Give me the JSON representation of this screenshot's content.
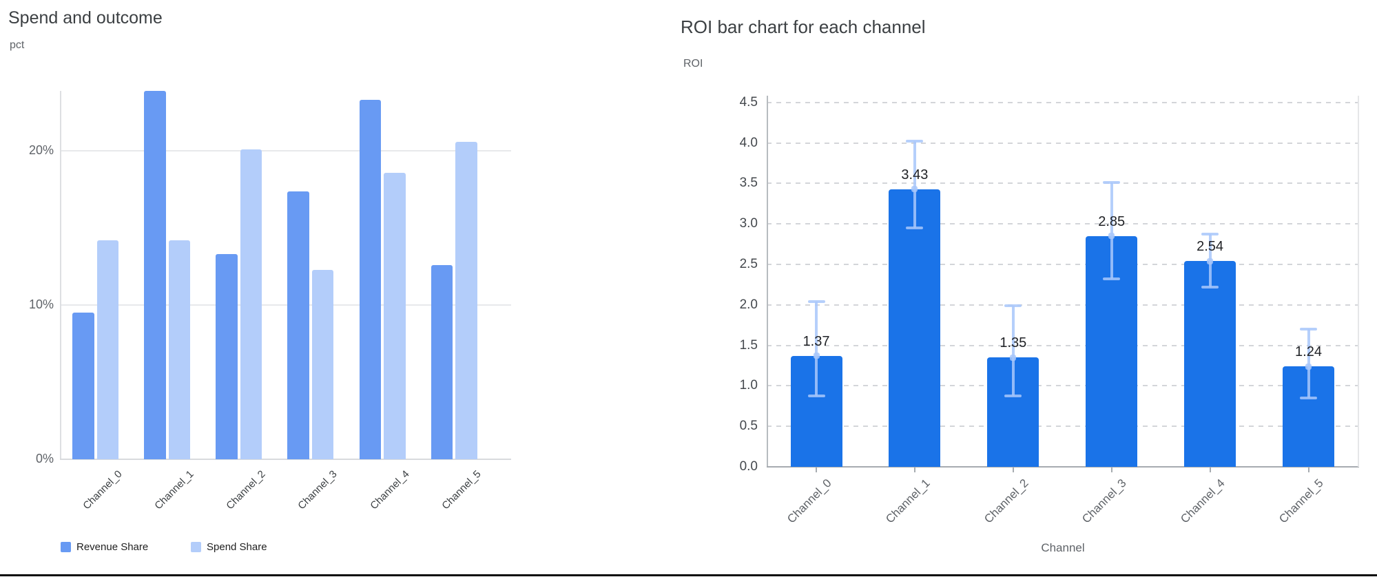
{
  "chart_data": [
    {
      "type": "bar",
      "title": "Spend and outcome",
      "ylabel": "pct",
      "xlabel": "",
      "categories": [
        "Channel_0",
        "Channel_1",
        "Channel_2",
        "Channel_3",
        "Channel_4",
        "Channel_5"
      ],
      "series": [
        {
          "name": "Revenue Share",
          "color": "#689af3",
          "values": [
            9.5,
            23.9,
            13.3,
            17.4,
            23.3,
            12.6
          ]
        },
        {
          "name": "Spend Share",
          "color": "#b3cdfa",
          "values": [
            14.2,
            14.2,
            20.1,
            12.3,
            18.6,
            20.6
          ]
        }
      ],
      "y_ticks": [
        {
          "v": 0,
          "label": "0%"
        },
        {
          "v": 10,
          "label": "10%"
        },
        {
          "v": 20,
          "label": "20%"
        }
      ],
      "ylim": [
        0,
        23.9
      ],
      "grid": "solid",
      "legend_position": "bottom"
    },
    {
      "type": "bar",
      "title": "ROI bar chart for each channel",
      "ylabel": "ROI",
      "xlabel": "Channel",
      "categories": [
        "Channel_0",
        "Channel_1",
        "Channel_2",
        "Channel_3",
        "Channel_4",
        "Channel_5"
      ],
      "values": [
        1.37,
        3.43,
        1.35,
        2.85,
        2.54,
        1.24
      ],
      "value_labels": [
        "1.37",
        "3.43",
        "1.35",
        "2.85",
        "2.54",
        "1.24"
      ],
      "error_low": [
        0.88,
        2.95,
        0.88,
        2.32,
        2.22,
        0.85
      ],
      "error_high": [
        2.04,
        4.02,
        1.99,
        3.51,
        2.87,
        1.7
      ],
      "bar_color": "#1a73e8",
      "error_color": "#a8c7fa",
      "y_ticks": [
        "0.0",
        "0.5",
        "1.0",
        "1.5",
        "2.0",
        "2.5",
        "3.0",
        "3.5",
        "4.0",
        "4.5"
      ],
      "ylim": [
        0,
        4.58
      ],
      "grid": "dashed",
      "legend_position": "none"
    }
  ]
}
